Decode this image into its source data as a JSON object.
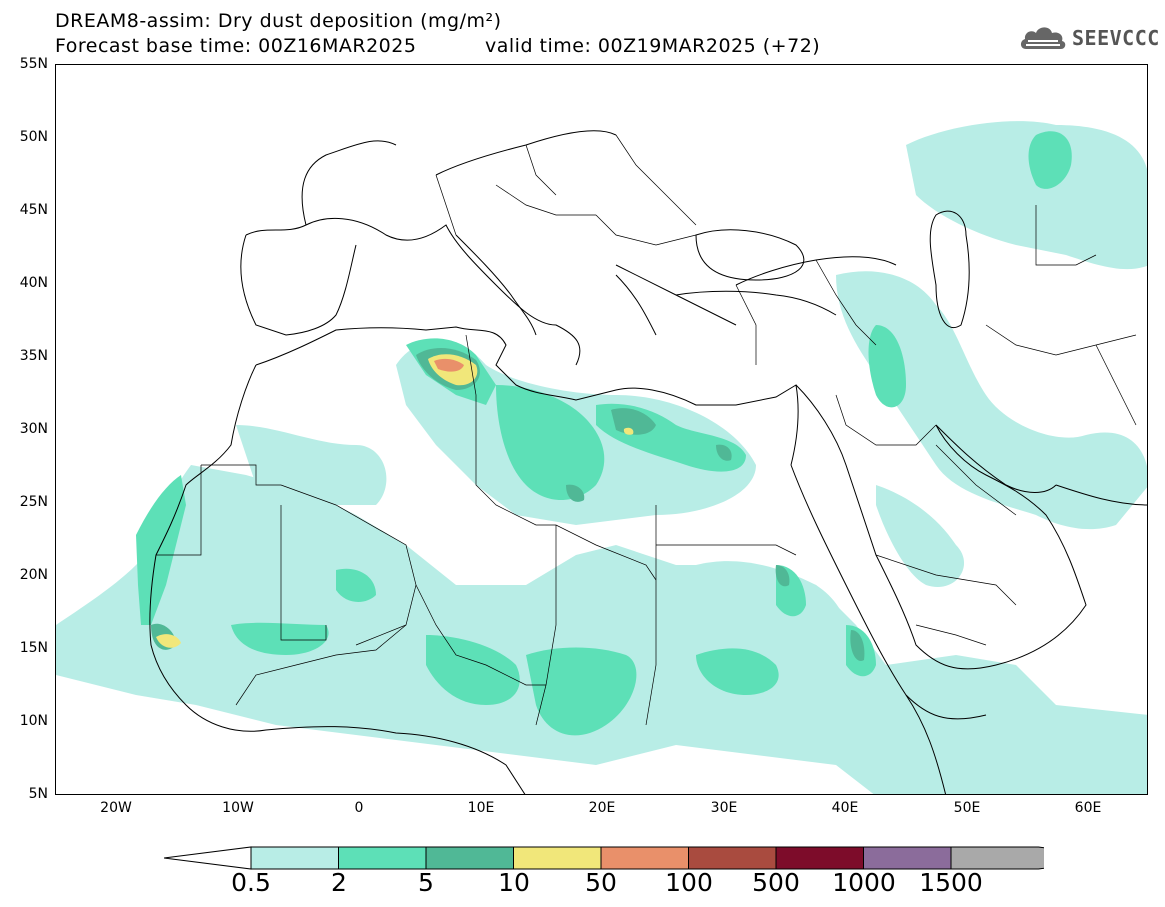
{
  "title": {
    "line1": "DREAM8-assim: Dry dust deposition (mg/m²)",
    "line2a": "Forecast base time: 00Z16MAR2025",
    "line2b": "valid time: 00Z19MAR2025 (+72)"
  },
  "logo": {
    "text": "SEEVCCC",
    "icon": "cloud-icon"
  },
  "axes": {
    "lat_labels": [
      "55N",
      "50N",
      "45N",
      "40N",
      "35N",
      "30N",
      "25N",
      "20N",
      "15N",
      "10N",
      "5N"
    ],
    "lon_labels": [
      "20W",
      "10W",
      "0",
      "10E",
      "20E",
      "30E",
      "40E",
      "50E",
      "60E"
    ]
  },
  "legend": {
    "labels": [
      "0.5",
      "2",
      "5",
      "10",
      "50",
      "100",
      "500",
      "1000",
      "1500"
    ],
    "colors": [
      "#b8ede6",
      "#5de0b7",
      "#50b896",
      "#f1e77a",
      "#e9906a",
      "#a94b3f",
      "#7d0c2a",
      "#8b6c9b",
      "#a9a9a9"
    ],
    "under_color": "#ffffff"
  }
}
